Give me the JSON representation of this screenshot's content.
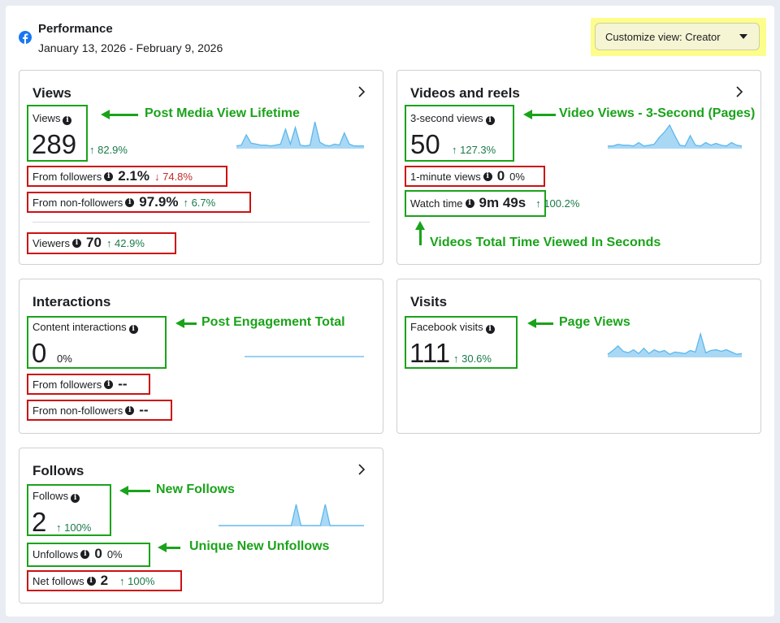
{
  "header": {
    "title": "Performance",
    "date_range": "January 13, 2026 - February 9, 2026",
    "customize_label": "Customize view: Creator",
    "logo_icon": "facebook-icon"
  },
  "cards": {
    "views": {
      "title": "Views",
      "main_label": "Views",
      "main_value": "289",
      "main_change": "↑ 82.9%",
      "from_followers_label": "From followers",
      "from_followers_value": "2.1%",
      "from_followers_change": "↓ 74.8%",
      "from_non_followers_label": "From non-followers",
      "from_non_followers_value": "97.9%",
      "from_non_followers_change": "↑ 6.7%",
      "viewers_label": "Viewers",
      "viewers_value": "70",
      "viewers_change": "↑ 42.9%",
      "annotation": "Post Media View Lifetime"
    },
    "videos": {
      "title": "Videos and reels",
      "three_sec_label": "3-second views",
      "three_sec_value": "50",
      "three_sec_change": "↑ 127.3%",
      "one_min_label": "1-minute views",
      "one_min_value": "0",
      "one_min_change": "0%",
      "watch_label": "Watch time",
      "watch_value": "9m 49s",
      "watch_change": "↑ 100.2%",
      "annotation": "Video Views - 3-Second (Pages)",
      "annotation2": "Videos Total Time Viewed In Seconds"
    },
    "interactions": {
      "title": "Interactions",
      "main_label": "Content interactions",
      "main_value": "0",
      "main_change": "0%",
      "from_followers_label": "From followers",
      "from_followers_value": "--",
      "from_non_followers_label": "From non-followers",
      "from_non_followers_value": "--",
      "annotation": "Post Engagement Total"
    },
    "visits": {
      "title": "Visits",
      "main_label": "Facebook visits",
      "main_value": "111",
      "main_change": "↑ 30.6%",
      "annotation": "Page Views"
    },
    "follows": {
      "title": "Follows",
      "main_label": "Follows",
      "main_value": "2",
      "main_change": "↑ 100%",
      "unfollows_label": "Unfollows",
      "unfollows_value": "0",
      "unfollows_change": "0%",
      "net_label": "Net follows",
      "net_value": "2",
      "net_change": "↑ 100%",
      "annotation": "New Follows",
      "annotation2": "Unique New Unfollows"
    }
  },
  "colors": {
    "spark_fill": "#a9d8f5",
    "spark_line": "#5cb8ec",
    "annotation_green": "#1aa31a",
    "box_red": "#cc1111",
    "highlight_yellow": "#fdfd8b"
  },
  "sparklines": {
    "views": [
      2,
      3,
      14,
      5,
      4,
      3,
      3,
      2,
      3,
      4,
      20,
      4,
      22,
      3,
      2,
      3,
      28,
      6,
      3,
      2,
      4,
      3,
      16,
      4,
      2,
      2,
      2
    ],
    "videos": [
      2,
      2,
      4,
      3,
      3,
      2,
      6,
      2,
      3,
      4,
      12,
      18,
      26,
      14,
      3,
      2,
      14,
      3,
      2,
      6,
      3,
      5,
      3,
      2,
      6,
      3,
      2
    ],
    "interactions": [
      1,
      1,
      1,
      1,
      1,
      1,
      1,
      1,
      1,
      1,
      1,
      1,
      1,
      1,
      1,
      1,
      1,
      1,
      1,
      1,
      1,
      1,
      1,
      1,
      1,
      1,
      1
    ],
    "visits": [
      3,
      8,
      14,
      7,
      5,
      9,
      4,
      11,
      4,
      9,
      6,
      8,
      3,
      6,
      5,
      4,
      8,
      6,
      30,
      5,
      8,
      9,
      7,
      9,
      6,
      3,
      4
    ],
    "follows": [
      0,
      0,
      0,
      0,
      0,
      0,
      0,
      0,
      0,
      0,
      0,
      0,
      0,
      0,
      0,
      0,
      24,
      0,
      0,
      0,
      0,
      0,
      24,
      0,
      0,
      0,
      0,
      0,
      0,
      0,
      0
    ]
  }
}
